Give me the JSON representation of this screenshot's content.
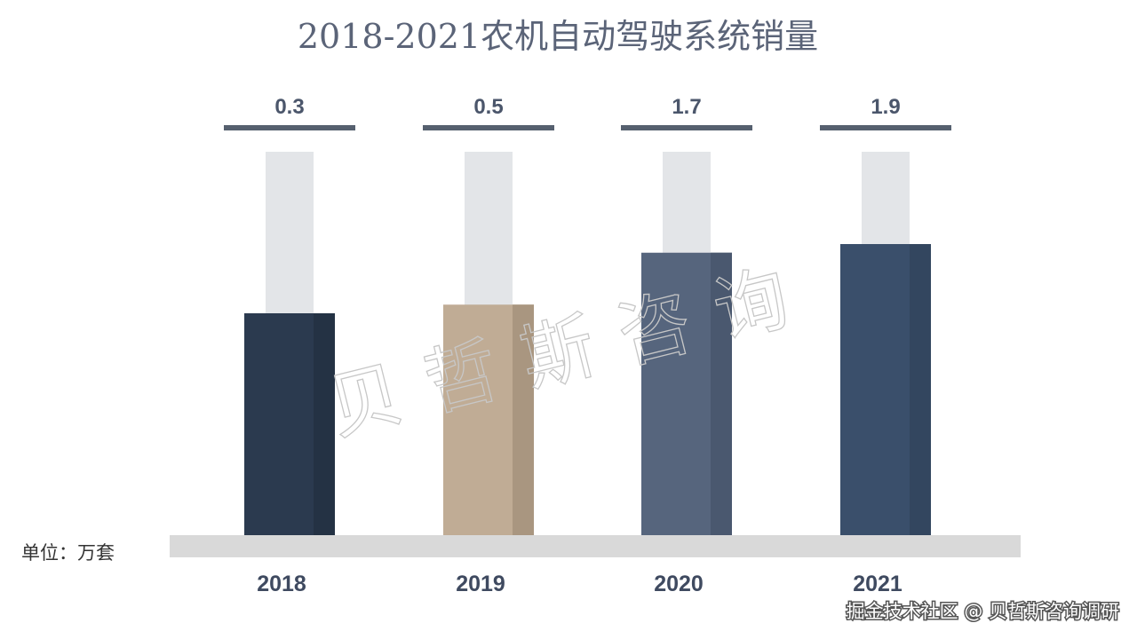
{
  "chart_data": {
    "type": "bar",
    "title": "2018-2021农机自动驾驶系统销量",
    "categories": [
      "2018",
      "2019",
      "2020",
      "2021"
    ],
    "values": [
      0.3,
      0.5,
      1.7,
      1.9
    ],
    "value_labels": [
      "0.3",
      "0.5",
      "1.7",
      "1.9"
    ],
    "unit_label": "单位：万套",
    "colors": {
      "bars": [
        "#2b3a4f",
        "#c0ac95",
        "#56657d",
        "#3a4f6b"
      ],
      "bars_side": [
        "#243244",
        "#a99680",
        "#4a586f",
        "#33465f"
      ],
      "background_column": "#e3e5e8",
      "baseline": "#d9d9d9",
      "label_underline": "#56606f"
    }
  },
  "watermark": {
    "chars": [
      "贝",
      "哲",
      "斯",
      "咨",
      "询"
    ]
  },
  "footer": {
    "text": "掘金技术社区 @ 贝哲斯咨询调研"
  }
}
